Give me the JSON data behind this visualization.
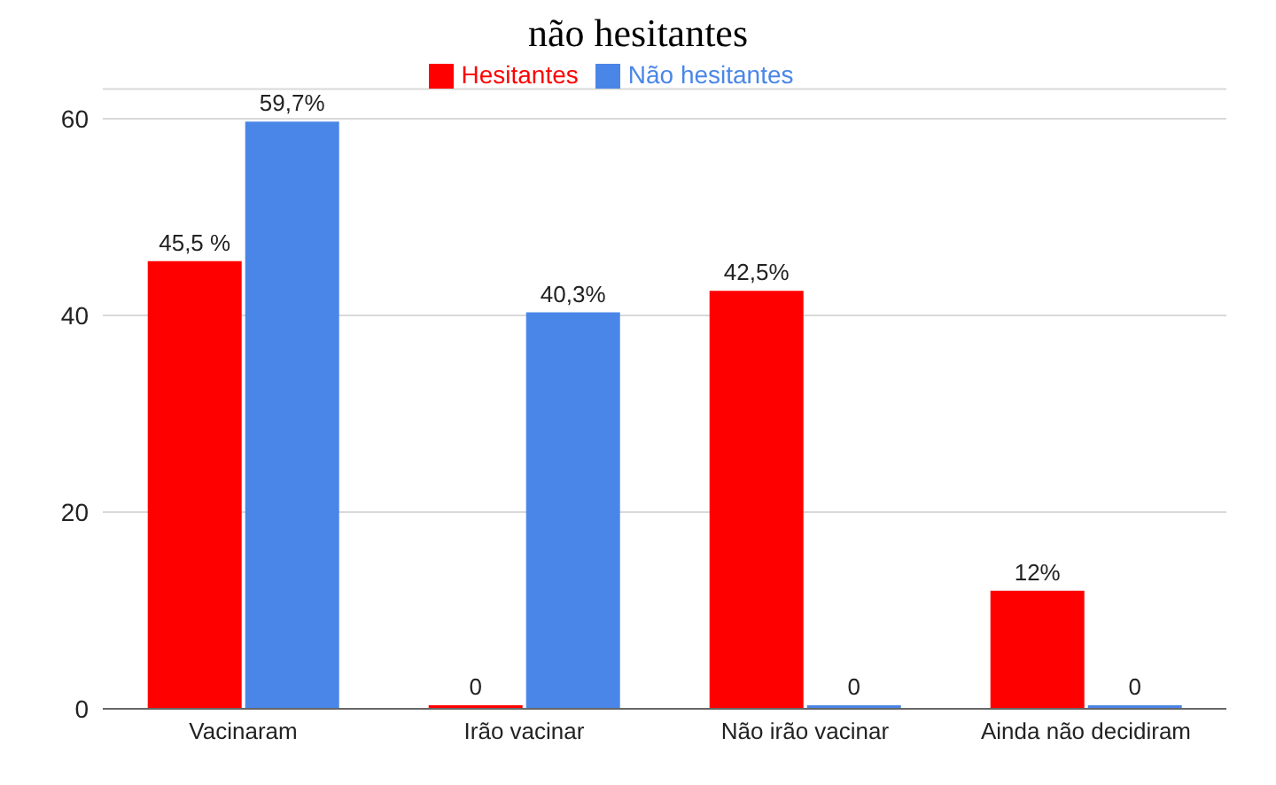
{
  "chart_data": {
    "type": "bar",
    "title": "não hesitantes",
    "categories": [
      "Vacinaram",
      "Irão vacinar",
      "Não irão vacinar",
      "Ainda não decidiram"
    ],
    "series": [
      {
        "name": "Hesitantes",
        "color": "#ff0000",
        "values": [
          45.5,
          0,
          42.5,
          12
        ],
        "value_labels": [
          "45,5 %",
          "0",
          "42,5%",
          "12%"
        ]
      },
      {
        "name": "Não hesitantes",
        "color": "#4a86e8",
        "values": [
          59.7,
          40.3,
          0,
          0
        ],
        "value_labels": [
          "59,7%",
          "40,3%",
          "0",
          "0"
        ]
      }
    ],
    "ylim": [
      0,
      63
    ],
    "yticks": [
      0,
      20,
      40,
      60
    ],
    "grid": "y",
    "legend": "top"
  }
}
